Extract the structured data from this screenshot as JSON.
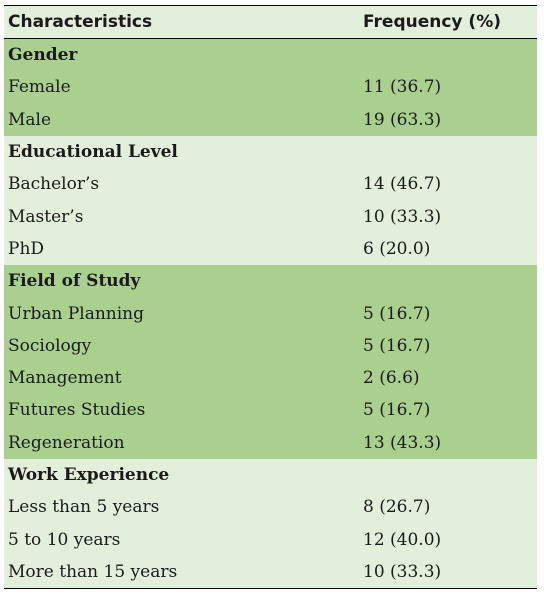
{
  "header": {
    "characteristics": "Characteristics",
    "frequency": "Frequency (%)"
  },
  "groups": [
    {
      "title": "Gender",
      "rows": [
        {
          "label": "Female",
          "value": "11 (36.7)"
        },
        {
          "label": "Male",
          "value": "19 (63.3)"
        }
      ]
    },
    {
      "title": "Educational Level",
      "rows": [
        {
          "label": "Bachelor’s",
          "value": "14 (46.7)"
        },
        {
          "label": "Master’s",
          "value": "10 (33.3)"
        },
        {
          "label": "PhD",
          "value": "6 (20.0)"
        }
      ]
    },
    {
      "title": "Field of Study",
      "rows": [
        {
          "label": "Urban Planning",
          "value": "5 (16.7)"
        },
        {
          "label": "Sociology",
          "value": "5 (16.7)"
        },
        {
          "label": "Management",
          "value": "2 (6.6)"
        },
        {
          "label": "Futures Studies",
          "value": "5 (16.7)"
        },
        {
          "label": "Regeneration",
          "value": "13 (43.3)"
        }
      ]
    },
    {
      "title": "Work Experience",
      "rows": [
        {
          "label": "Less than 5 years",
          "value": "8 (26.7)"
        },
        {
          "label": "5 to 10 years",
          "value": "12 (40.0)"
        },
        {
          "label": "More than 15 years",
          "value": "10 (33.3)"
        }
      ]
    }
  ],
  "colors": {
    "band_dark": "#a9d08e",
    "band_light": "#e2efda"
  }
}
